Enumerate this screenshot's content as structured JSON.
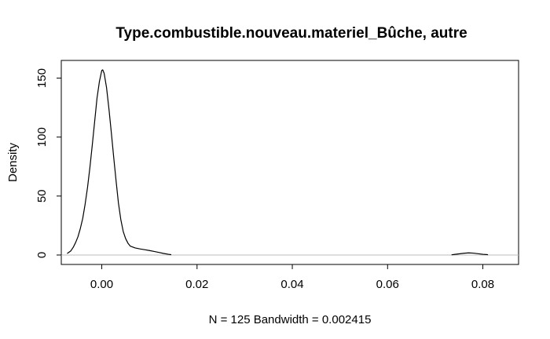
{
  "chart_data": {
    "type": "line",
    "title": "Type.combustible.nouveau.materiel_Bûche, autre",
    "xlabel": "N = 125   Bandwidth = 0.002415",
    "ylabel": "Density",
    "xlim": [
      -0.0085,
      0.0875
    ],
    "ylim": [
      -8,
      165
    ],
    "x_ticks": [
      0.0,
      0.02,
      0.04,
      0.06,
      0.08
    ],
    "x_tick_labels": [
      "0.00",
      "0.02",
      "0.04",
      "0.06",
      "0.08"
    ],
    "y_ticks": [
      0,
      50,
      100,
      150
    ],
    "y_tick_labels": [
      "0",
      "50",
      "100",
      "150"
    ],
    "baseline": 0,
    "grid": false,
    "legend": "none",
    "line_color": "#000000",
    "baseline_color": "#bdbdbd",
    "series": [
      {
        "segments": [
          [
            [
              -0.0072,
              1.5
            ],
            [
              -0.0065,
              3.5
            ],
            [
              -0.006,
              6.5
            ],
            [
              -0.0055,
              10.5
            ],
            [
              -0.005,
              15.5
            ],
            [
              -0.0045,
              22.5
            ],
            [
              -0.004,
              31
            ],
            [
              -0.0035,
              43
            ],
            [
              -0.003,
              57
            ],
            [
              -0.0025,
              74
            ],
            [
              -0.002,
              93
            ],
            [
              -0.0015,
              113
            ],
            [
              -0.001,
              133
            ],
            [
              -0.0005,
              147
            ],
            [
              0.0,
              156.5
            ],
            [
              0.0002,
              157
            ],
            [
              0.0005,
              154
            ],
            [
              0.001,
              142
            ],
            [
              0.0015,
              124
            ],
            [
              0.002,
              104
            ],
            [
              0.0025,
              83
            ],
            [
              0.003,
              63
            ],
            [
              0.0035,
              44
            ],
            [
              0.004,
              30
            ],
            [
              0.0045,
              20
            ],
            [
              0.005,
              14
            ],
            [
              0.0055,
              10
            ],
            [
              0.006,
              7.5
            ],
            [
              0.007,
              6
            ],
            [
              0.008,
              5.2
            ],
            [
              0.009,
              4.5
            ],
            [
              0.01,
              3.8
            ],
            [
              0.011,
              3
            ],
            [
              0.012,
              2.2
            ],
            [
              0.013,
              1.3
            ],
            [
              0.014,
              0.6
            ],
            [
              0.0145,
              0.3
            ]
          ],
          [
            [
              0.0735,
              0.2
            ],
            [
              0.074,
              0.5
            ],
            [
              0.075,
              1.0
            ],
            [
              0.076,
              1.5
            ],
            [
              0.077,
              1.8
            ],
            [
              0.078,
              1.6
            ],
            [
              0.079,
              1.1
            ],
            [
              0.08,
              0.6
            ],
            [
              0.081,
              0.3
            ]
          ]
        ]
      }
    ]
  }
}
